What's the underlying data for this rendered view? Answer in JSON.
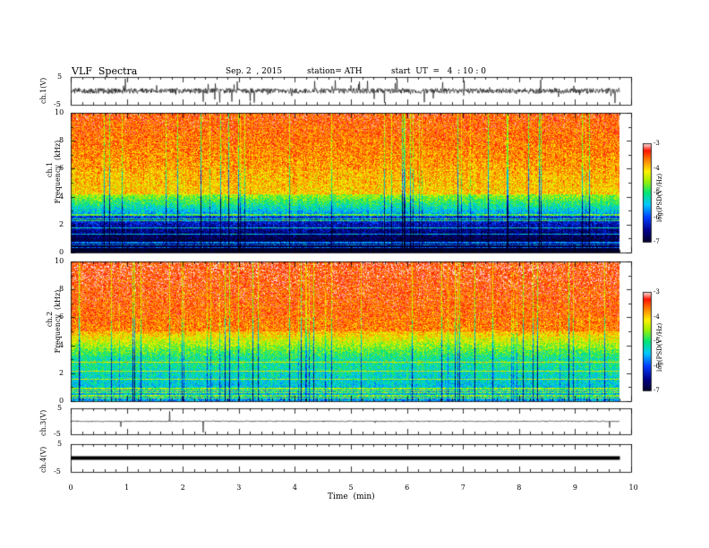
{
  "header": {
    "title": "VLF  Spectra",
    "date": "Sep. 2  , 2015",
    "station": "station= ATH",
    "start": "start  UT  =   4  : 10 : 0"
  },
  "chart_data": [
    {
      "type": "line",
      "panel": "ch1-waveform",
      "ylabel": "ch.1(V)",
      "yticks": [
        "5",
        "-5"
      ],
      "ylim": [
        -5,
        5
      ],
      "xlim": [
        0,
        10
      ],
      "data_end_min": 9.8,
      "baseline": 0,
      "series_color": "#000000"
    },
    {
      "type": "heatmap",
      "panel": "ch1-spectrogram",
      "ylabel": "ch.1\nFrequency  (kHz)",
      "yticks": [
        "0",
        "2",
        "4",
        "6",
        "8",
        "10"
      ],
      "ylim": [
        0,
        10
      ],
      "xlim": [
        0,
        10
      ],
      "data_end_min": 9.8,
      "colorbar": {
        "label": "log(PSD(V²/Hz)",
        "ticks": [
          "-3",
          "-4",
          "-5",
          "-6",
          "-7"
        ],
        "range": [
          -7,
          -3
        ]
      }
    },
    {
      "type": "heatmap",
      "panel": "ch2-spectrogram",
      "ylabel": "ch.2\nFrequency  (kHz)",
      "yticks": [
        "0",
        "2",
        "4",
        "6",
        "8",
        "10"
      ],
      "ylim": [
        0,
        10
      ],
      "xlim": [
        0,
        10
      ],
      "data_end_min": 9.8,
      "colorbar": {
        "label": "log(PSD(V²/Hz)",
        "ticks": [
          "-3",
          "-4",
          "-5",
          "-6",
          "-7"
        ],
        "range": [
          -7,
          -3
        ]
      }
    },
    {
      "type": "line",
      "panel": "ch3-waveform",
      "ylabel": "ch.3(V)",
      "yticks": [
        "5",
        "-5"
      ],
      "ylim": [
        -5,
        5
      ],
      "xlim": [
        0,
        10
      ],
      "data_end_min": 9.8,
      "baseline": 0,
      "series_color": "#000000"
    },
    {
      "type": "line",
      "panel": "ch4-waveform",
      "ylabel": "ch.4(V)",
      "yticks": [
        "5",
        "-5"
      ],
      "ylim": [
        -5,
        5
      ],
      "xlim": [
        0,
        10
      ],
      "data_end_min": 9.8,
      "baseline": 0,
      "series_color": "#000000"
    }
  ],
  "xaxis": {
    "label": "Time  (min)",
    "ticks": [
      "0",
      "1",
      "2",
      "3",
      "4",
      "5",
      "6",
      "7",
      "8",
      "9",
      "10"
    ]
  }
}
